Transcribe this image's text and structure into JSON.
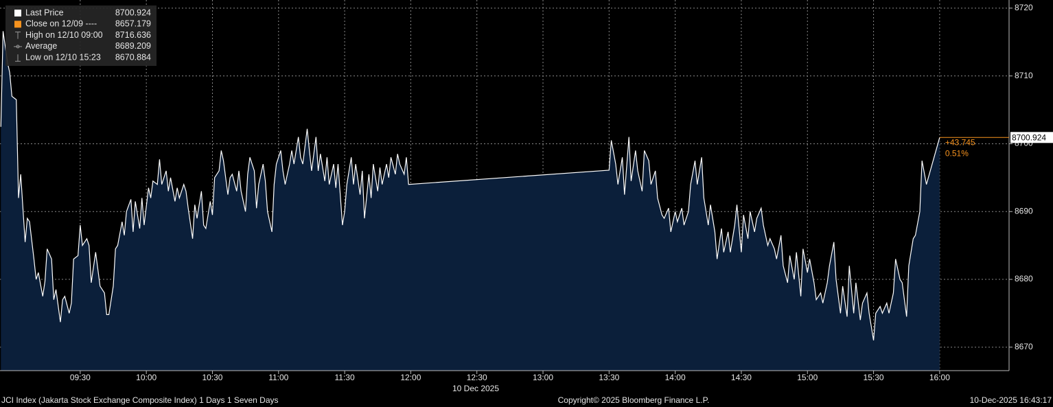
{
  "chart_data": {
    "type": "area",
    "x": [
      534,
      535,
      537,
      538,
      539,
      541,
      542,
      543,
      545,
      546,
      547,
      549,
      550,
      551,
      553,
      554,
      555,
      557,
      558,
      559,
      561,
      562,
      563,
      565,
      566,
      567,
      569,
      570,
      571,
      573,
      574,
      575,
      577,
      578,
      579,
      581,
      582,
      583,
      585,
      586,
      587,
      589,
      590,
      591,
      593,
      594,
      595,
      597,
      598,
      599,
      601,
      602,
      603,
      605,
      606,
      607,
      609,
      610,
      611,
      613,
      614,
      615,
      617,
      618,
      619,
      621,
      622,
      623,
      625,
      626,
      627,
      629,
      630,
      631,
      633,
      634,
      635,
      637,
      638,
      639,
      641,
      642,
      643,
      645,
      646,
      647,
      649,
      650,
      651,
      653,
      654,
      655,
      657,
      658,
      659,
      661,
      662,
      663,
      665,
      666,
      667,
      669,
      670,
      671,
      673,
      674,
      675,
      677,
      678,
      679,
      681,
      682,
      683,
      685,
      686,
      687,
      689,
      690,
      691,
      693,
      694,
      695,
      697,
      698,
      699,
      701,
      702,
      703,
      705,
      706,
      707,
      709,
      710,
      711,
      713,
      714,
      715,
      717,
      718,
      719,
      810,
      811,
      813,
      814,
      816,
      817,
      819,
      820,
      822,
      823,
      825,
      826,
      828,
      829,
      831,
      832,
      834,
      835,
      837,
      838,
      840,
      841,
      843,
      844,
      846,
      847,
      849,
      850,
      852,
      853,
      855,
      856,
      858,
      859,
      861,
      862,
      864,
      865,
      867,
      868,
      870,
      871,
      873,
      874,
      876,
      877,
      879,
      880,
      882,
      883,
      885,
      886,
      888,
      889,
      891,
      892,
      894,
      895,
      897,
      898,
      900,
      901,
      903,
      904,
      906,
      907,
      909,
      910,
      912,
      913,
      915,
      916,
      918,
      919,
      921,
      922,
      924,
      925,
      927,
      928,
      930,
      931,
      933,
      934,
      936,
      937,
      939,
      940,
      942,
      943,
      945,
      946,
      948,
      949,
      951,
      952,
      954,
      960
    ],
    "series": [
      {
        "name": "Last Price",
        "color": "#ffffff",
        "values": [
          8702.5,
          8716.6,
          8712,
          8710.5,
          8707,
          8706.5,
          8692,
          8695.5,
          8685.5,
          8689,
          8688.5,
          8683,
          8680,
          8681,
          8677.5,
          8679.7,
          8684.5,
          8683,
          8677,
          8678.5,
          8673.7,
          8677,
          8677.5,
          8675,
          8676.5,
          8683,
          8683.5,
          8688,
          8685,
          8686,
          8685,
          8679.5,
          8684,
          8681.5,
          8679,
          8678,
          8674.8,
          8674.8,
          8679,
          8684.5,
          8685,
          8688.5,
          8686.5,
          8690,
          8691.8,
          8687,
          8691.5,
          8687.5,
          8692,
          8688,
          8693.5,
          8692,
          8694.5,
          8694,
          8697.7,
          8694,
          8696,
          8693,
          8695,
          8691.5,
          8693.5,
          8692,
          8694,
          8693,
          8690.5,
          8686,
          8691,
          8689,
          8693,
          8688,
          8687.5,
          8691.5,
          8689.5,
          8695,
          8696,
          8699,
          8697.5,
          8692.5,
          8695,
          8695.5,
          8693,
          8696,
          8693,
          8690,
          8695.5,
          8698,
          8696,
          8690.5,
          8694,
          8697,
          8694.5,
          8690,
          8687,
          8694,
          8697,
          8699,
          8696,
          8694,
          8697,
          8699,
          8697,
          8701,
          8698,
          8697,
          8702.2,
          8699,
          8696,
          8701,
          8696,
          8698.5,
          8694.5,
          8698,
          8694,
          8697,
          8693.5,
          8697,
          8688,
          8690,
          8694,
          8698,
          8694,
          8697,
          8692.5,
          8696,
          8689,
          8695.5,
          8692,
          8697,
          8693,
          8696.5,
          8694,
          8697,
          8695,
          8698,
          8695.5,
          8698.5,
          8697,
          8695.5,
          8698,
          8694,
          8696.1,
          8700.5,
          8697,
          8694,
          8698,
          8692.5,
          8701,
          8694.5,
          8699,
          8696,
          8693,
          8699,
          8697.5,
          8694,
          8696,
          8692,
          8689.5,
          8689,
          8690.5,
          8687,
          8690,
          8688.5,
          8690.5,
          8688,
          8690,
          8694,
          8697.5,
          8694,
          8698,
          8692,
          8688,
          8691,
          8687,
          8683,
          8687.5,
          8684,
          8687,
          8684,
          8688,
          8691,
          8684,
          8689.5,
          8686,
          8690,
          8687,
          8689,
          8690.5,
          8688,
          8685,
          8686,
          8684.5,
          8683,
          8686.5,
          8682,
          8679.5,
          8683.5,
          8680,
          8684,
          8677.5,
          8684.5,
          8681,
          8683,
          8679.5,
          8677,
          8678,
          8676.5,
          8679.5,
          8682,
          8685.5,
          8680,
          8675,
          8679,
          8674.5,
          8682,
          8675,
          8679.5,
          8674,
          8676.5,
          8678,
          8675,
          8671,
          8675,
          8676,
          8675,
          8676.5,
          8675,
          8678,
          8683,
          8680,
          8679.5,
          8674.5,
          8682,
          8686,
          8686.5,
          8690,
          8697.5,
          8694,
          8700.924
        ]
      }
    ],
    "fill_color": "#0b1f3a",
    "xlim": [
      533.6,
      991.5
    ],
    "xticks": [
      {
        "value": 570,
        "label": "09:30"
      },
      {
        "value": 600,
        "label": "10:00"
      },
      {
        "value": 630,
        "label": "10:30"
      },
      {
        "value": 660,
        "label": "11:00"
      },
      {
        "value": 690,
        "label": "11:30"
      },
      {
        "value": 720,
        "label": "12:00"
      },
      {
        "value": 750,
        "label": "12:30"
      },
      {
        "value": 780,
        "label": "13:00"
      },
      {
        "value": 810,
        "label": "13:30"
      },
      {
        "value": 840,
        "label": "14:00"
      },
      {
        "value": 870,
        "label": "14:30"
      },
      {
        "value": 900,
        "label": "15:00"
      },
      {
        "value": 930,
        "label": "15:30"
      },
      {
        "value": 960,
        "label": "16:00"
      }
    ],
    "x_label": "10 Dec 2025",
    "ylim": [
      8666.54,
      8721.2
    ],
    "yticks": [
      8670,
      8680,
      8690,
      8700,
      8710,
      8720
    ],
    "grid": true,
    "stats": [
      {
        "label": "Close on 12/09 ----",
        "value": 8657.179,
        "color": "#f7931e"
      },
      {
        "label": "High on 12/10 09:00",
        "value": 8716.636,
        "color": "#9a9a9a"
      },
      {
        "label": "Average",
        "value": 8689.209,
        "color": "#9a9a9a"
      },
      {
        "label": "Low on 12/10 15:23",
        "value": 8670.884,
        "color": "#9a9a9a"
      }
    ],
    "annotations": [
      "+43.745",
      "0.51%"
    ],
    "annotation_color": "#f7931e",
    "footer": {
      "left": "JCI Index (Jakarta Stock Exchange Composite Index) 1 Days 1 Seven Days",
      "center": "Copyright© 2025 Bloomberg Finance L.P.",
      "right": "10-Dec-2025 16:43:17"
    }
  }
}
